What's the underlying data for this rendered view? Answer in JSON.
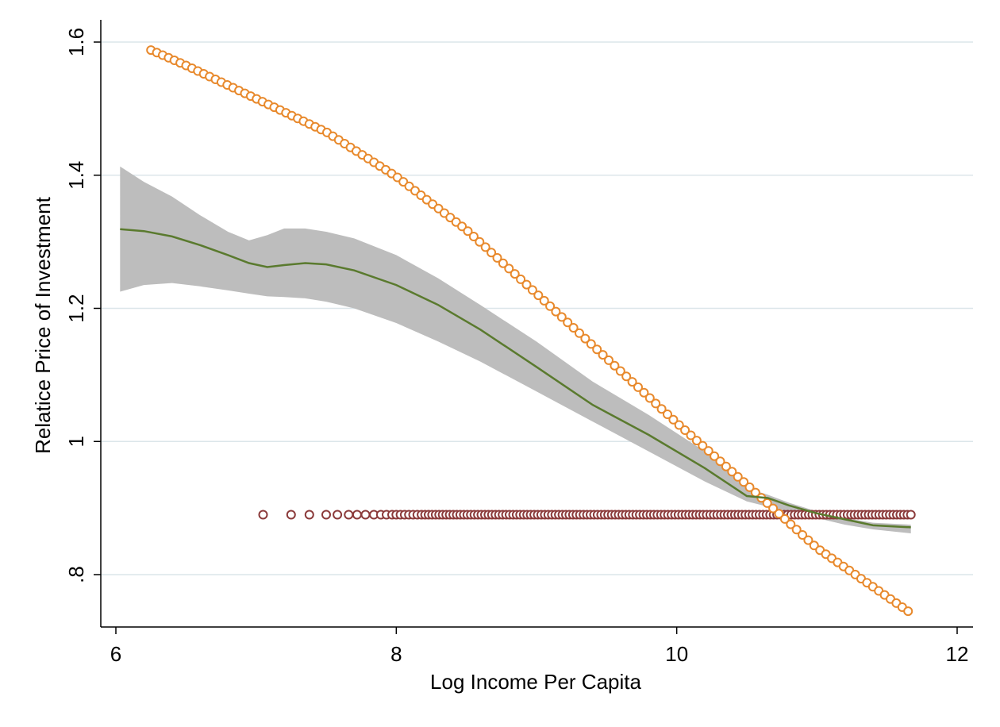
{
  "chart_data": {
    "type": "scatter",
    "title": "",
    "xlabel": "Log Income Per Capita",
    "ylabel": "Relatice Price of Investment",
    "xlim": [
      5.95,
      12.05
    ],
    "ylim": [
      0.72,
      1.62
    ],
    "xticks": [
      6,
      8,
      10,
      12
    ],
    "xtick_labels": [
      "6",
      "8",
      "10",
      "12"
    ],
    "yticks": [
      0.8,
      1.0,
      1.2,
      1.4,
      1.6
    ],
    "ytick_labels": [
      ".8",
      "1",
      "1.2",
      "1.4",
      "1.6"
    ],
    "grid": "horizontal",
    "legend": "none",
    "series": [
      {
        "kind": "band",
        "color": "#bdbdbd",
        "x": [
          6.03,
          6.2,
          6.4,
          6.6,
          6.8,
          6.95,
          7.08,
          7.2,
          7.35,
          7.5,
          7.7,
          8.0,
          8.3,
          8.6,
          9.0,
          9.4,
          9.8,
          10.2,
          10.5,
          10.65,
          10.8,
          11.0,
          11.2,
          11.4,
          11.67
        ],
        "lower": [
          1.225,
          1.235,
          1.238,
          1.233,
          1.227,
          1.222,
          1.218,
          1.217,
          1.215,
          1.21,
          1.2,
          1.178,
          1.15,
          1.12,
          1.075,
          1.03,
          0.985,
          0.94,
          0.91,
          0.902,
          0.895,
          0.885,
          0.875,
          0.868,
          0.862
        ],
        "upper": [
          1.413,
          1.39,
          1.368,
          1.34,
          1.315,
          1.302,
          1.31,
          1.32,
          1.32,
          1.315,
          1.305,
          1.28,
          1.245,
          1.205,
          1.15,
          1.09,
          1.04,
          0.985,
          0.93,
          0.92,
          0.908,
          0.895,
          0.885,
          0.878,
          0.875
        ]
      },
      {
        "kind": "line",
        "color": "#5a7a2e",
        "x": [
          6.03,
          6.2,
          6.4,
          6.6,
          6.8,
          6.95,
          7.08,
          7.2,
          7.35,
          7.5,
          7.7,
          8.0,
          8.3,
          8.6,
          9.0,
          9.4,
          9.8,
          10.2,
          10.5,
          10.65,
          10.8,
          11.0,
          11.2,
          11.4,
          11.67
        ],
        "y": [
          1.319,
          1.316,
          1.308,
          1.295,
          1.28,
          1.268,
          1.262,
          1.265,
          1.268,
          1.266,
          1.257,
          1.235,
          1.205,
          1.168,
          1.112,
          1.055,
          1.01,
          0.96,
          0.918,
          0.915,
          0.904,
          0.892,
          0.883,
          0.874,
          0.871
        ]
      },
      {
        "kind": "points",
        "color": "#e8892c",
        "x_start": 6.25,
        "x_end": 11.65,
        "count": 130,
        "curve_x": [
          6.25,
          6.5,
          7.0,
          7.5,
          8.0,
          8.5,
          9.0,
          9.5,
          10.0,
          10.5,
          11.0,
          11.65
        ],
        "curve_y": [
          1.588,
          1.565,
          1.515,
          1.465,
          1.398,
          1.318,
          1.222,
          1.125,
          1.028,
          0.935,
          0.84,
          0.745
        ]
      },
      {
        "kind": "points",
        "color": "#8b3a3a",
        "y": 0.89,
        "x": [
          7.05,
          7.25,
          7.38,
          7.5,
          7.58,
          7.66,
          7.72,
          7.78,
          7.84,
          7.89,
          7.93,
          7.97,
          8.0,
          8.03,
          8.06,
          8.09,
          8.12,
          8.15
        ],
        "x_dense_start": 8.18,
        "x_dense_end": 11.67,
        "x_dense_count": 140
      }
    ]
  }
}
